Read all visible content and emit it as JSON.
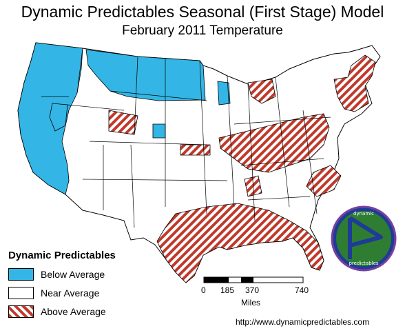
{
  "title": "Dynamic Predictables Seasonal (First Stage) Model",
  "subtitle": "February 2011 Temperature",
  "legend": {
    "title": "Dynamic Predictables",
    "items": [
      {
        "label": "Below Average",
        "color": "#33b5e5",
        "pattern": "solid"
      },
      {
        "label": "Near Average",
        "color": "#ffffff",
        "pattern": "solid"
      },
      {
        "label": "Above Average",
        "color": "#c0392b",
        "pattern": "diagonal-hatch"
      }
    ]
  },
  "scale": {
    "ticks": [
      "0",
      "185",
      "370",
      "740"
    ],
    "unit": "Miles"
  },
  "logo": {
    "top_text": "dynamic",
    "bottom_text": "predictables",
    "colors": [
      "#7b3fa0",
      "#2e7d32",
      "#1e3c96"
    ]
  },
  "url": "http://www.dynamicpredictables.com",
  "regions": {
    "below_average": [
      "Pacific Northwest",
      "California coast",
      "Northern Rockies",
      "Dakotas",
      "Wisconsin"
    ],
    "above_average": [
      "Northeast",
      "Ohio Valley",
      "Southeast",
      "Gulf Coast",
      "Southern Texas",
      "Carolinas",
      "Central Plains"
    ]
  }
}
